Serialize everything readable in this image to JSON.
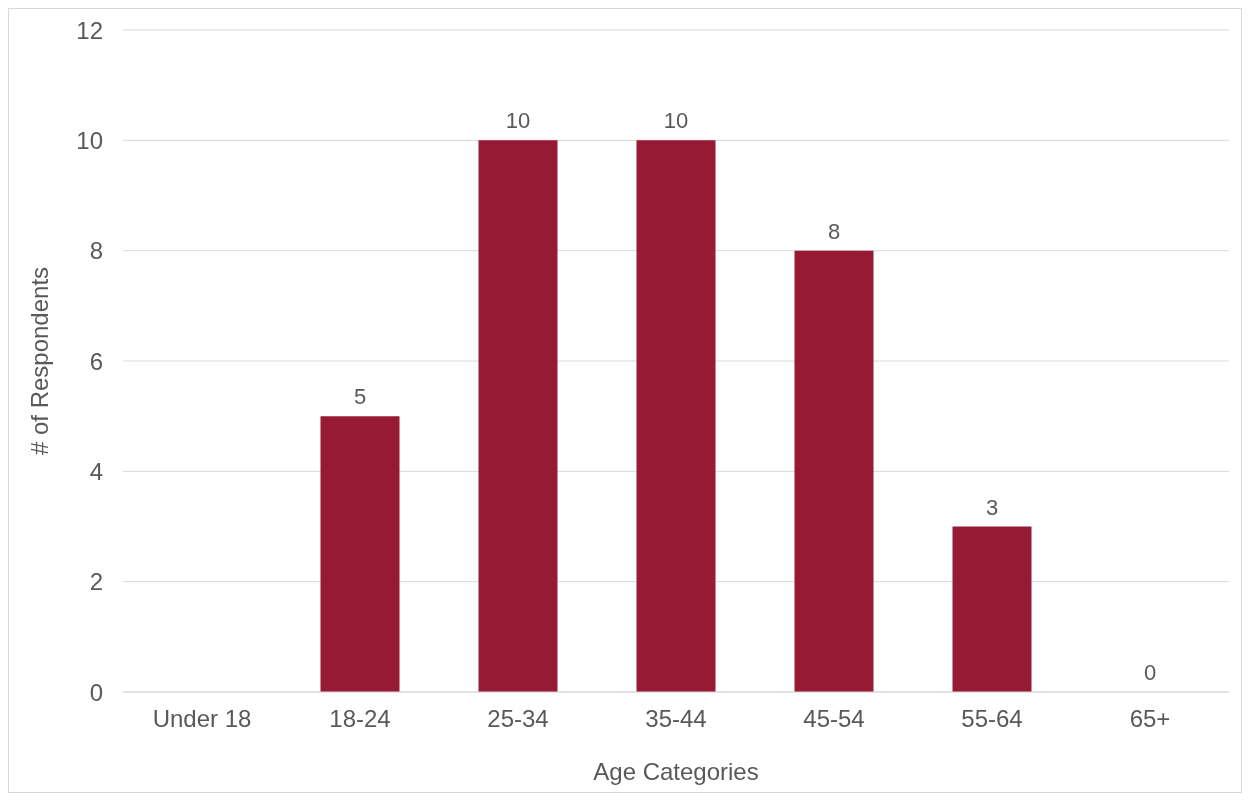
{
  "chart_data": {
    "type": "bar",
    "xlabel": "Age Categories",
    "ylabel": "# of Respondents",
    "categories": [
      "Under 18",
      "18-24",
      "25-34",
      "35-44",
      "45-54",
      "55-64",
      "65+"
    ],
    "values": [
      null,
      5,
      10,
      10,
      8,
      3,
      0
    ],
    "color": "#961a34",
    "ylim": [
      0,
      12
    ],
    "yticks": [
      0,
      2,
      4,
      6,
      8,
      10,
      12
    ],
    "grid": "y",
    "data_labels": true
  }
}
